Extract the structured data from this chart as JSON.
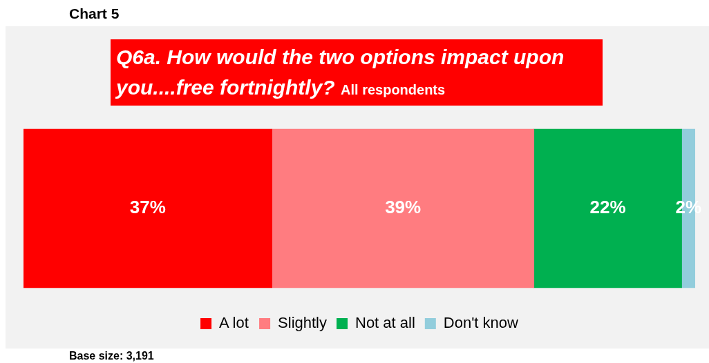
{
  "chart_data": {
    "type": "bar",
    "orientation": "horizontal",
    "stacked": true,
    "title": "Q6a. How would the two options impact upon you....free fortnightly?",
    "subtitle": "All respondents",
    "categories": [
      null
    ],
    "xlim": [
      0,
      100
    ],
    "legend": "bottom",
    "series": [
      {
        "name": "A lot",
        "color": "#ff0000",
        "values": [
          37
        ],
        "value_labels": [
          "37%"
        ]
      },
      {
        "name": "Slightly",
        "color": "#ff7c80",
        "values": [
          39
        ],
        "value_labels": [
          "39%"
        ]
      },
      {
        "name": "Not at all",
        "color": "#00b050",
        "values": [
          22
        ],
        "value_labels": [
          "22%"
        ]
      },
      {
        "name": "Don't know",
        "color": "#92cddc",
        "values": [
          2
        ],
        "value_labels": [
          "2%"
        ]
      }
    ],
    "annotations": [
      "Chart 5",
      "Base size: 3,191"
    ]
  }
}
